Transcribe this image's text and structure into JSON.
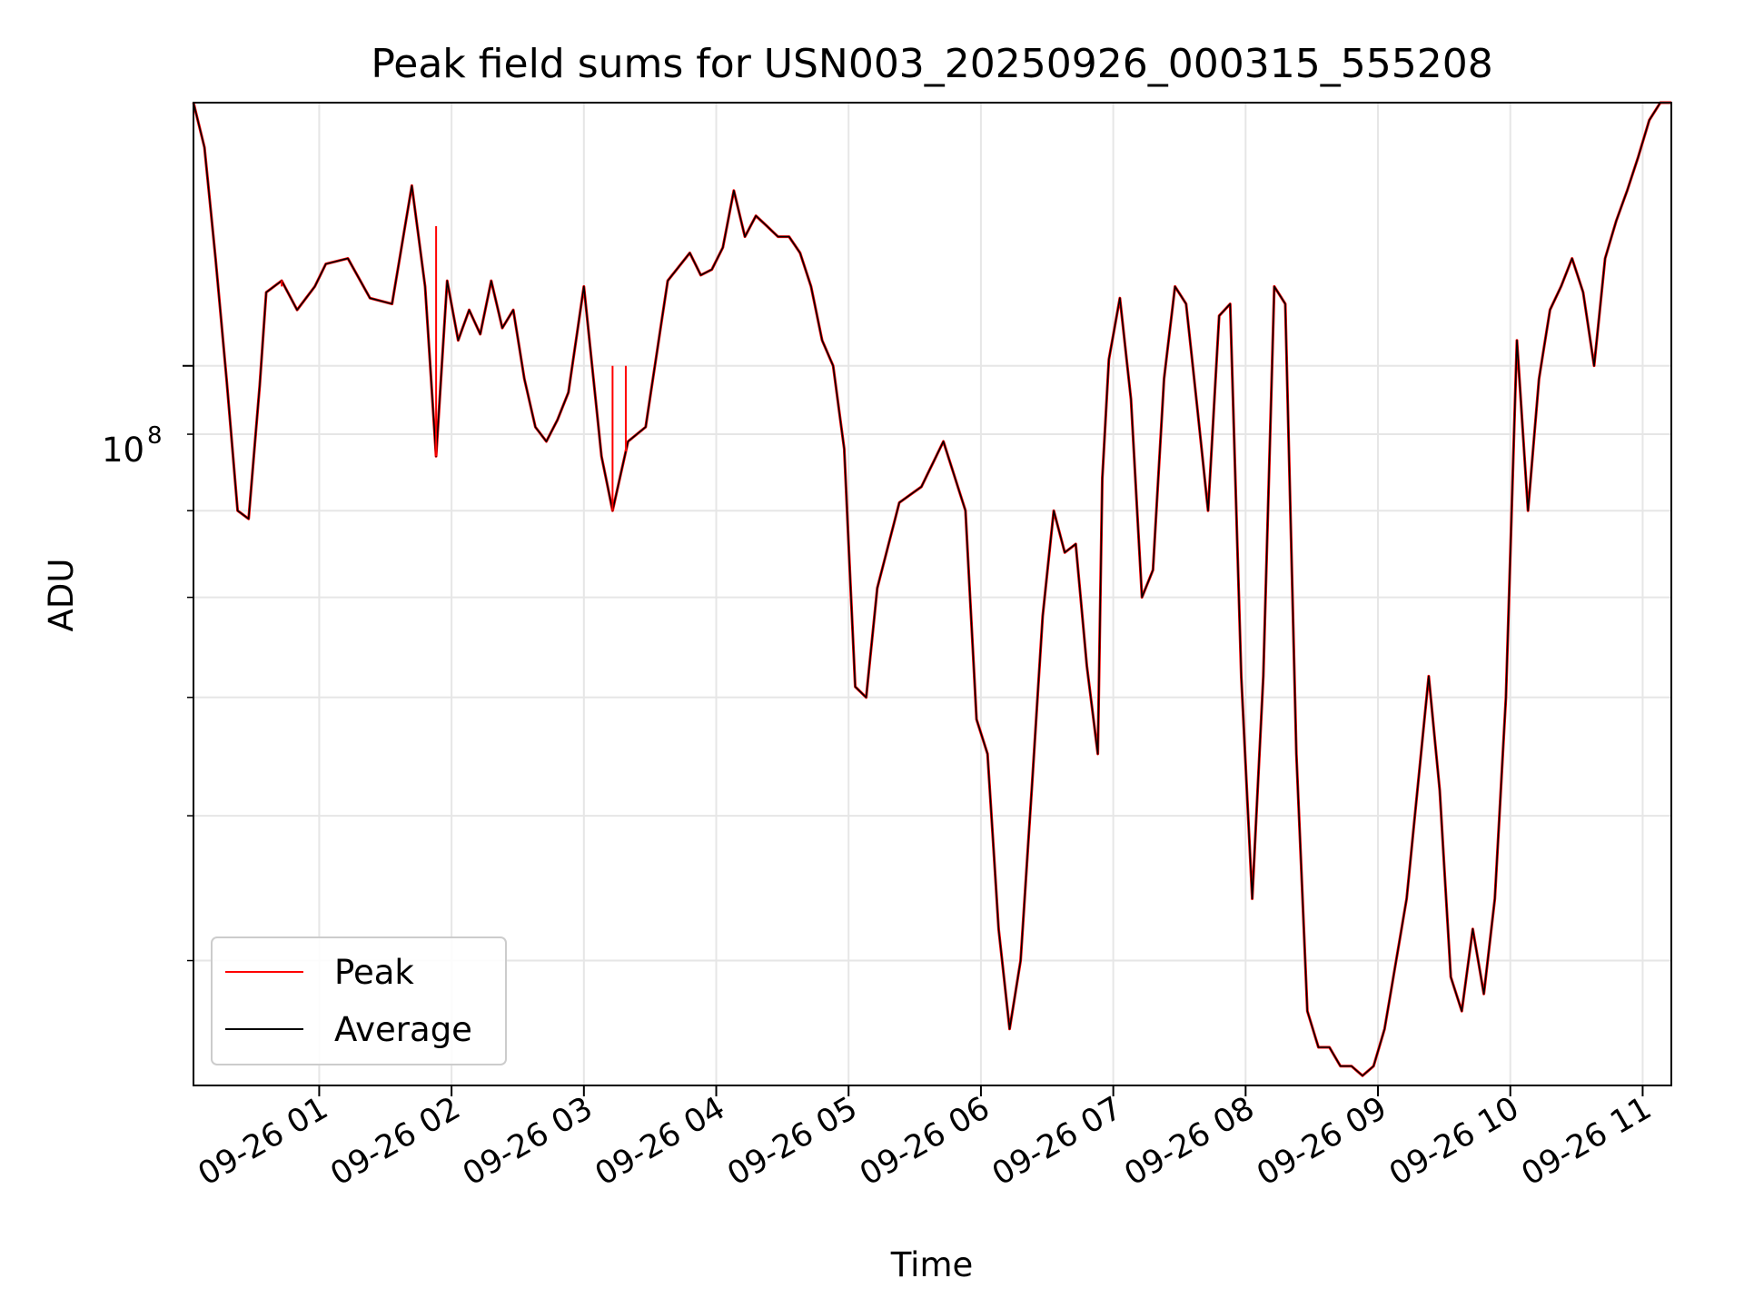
{
  "chart_data": {
    "type": "line",
    "title": "Peak field sums for USN003_20250926_000315_555208",
    "xlabel": "Time",
    "ylabel": "ADU",
    "y_scale": "log",
    "y_tick_label": {
      "base": "10",
      "exponent": "8"
    },
    "xlim": [
      "2025-09-26 00:03",
      "2025-09-26 11:13"
    ],
    "ylim": [
      33000000,
      150000000
    ],
    "x_tick_labels": [
      "09-26 01",
      "09-26 02",
      "09-26 03",
      "09-26 04",
      "09-26 05",
      "09-26 06",
      "09-26 07",
      "09-26 08",
      "09-26 09",
      "09-26 10",
      "09-26 11"
    ],
    "x_ticks": [
      "2025-09-26 01:00",
      "2025-09-26 02:00",
      "2025-09-26 03:00",
      "2025-09-26 04:00",
      "2025-09-26 05:00",
      "2025-09-26 06:00",
      "2025-09-26 07:00",
      "2025-09-26 08:00",
      "2025-09-26 09:00",
      "2025-09-26 10:00",
      "2025-09-26 11:00"
    ],
    "y_minor_ticks": [
      40000000,
      50000000,
      60000000,
      70000000,
      80000000,
      90000000,
      200000000
    ],
    "grid": true,
    "legend_position": "lower-left",
    "series": [
      {
        "name": "Peak",
        "color": "#ff0000"
      },
      {
        "name": "Average",
        "color": "#000000"
      }
    ],
    "x": [
      "00:03",
      "00:08",
      "00:13",
      "00:18",
      "00:23",
      "00:28",
      "00:33",
      "00:36",
      "00:43",
      "00:50",
      "00:58",
      "01:03",
      "01:13",
      "01:23",
      "01:33",
      "01:42",
      "01:48",
      "01:53",
      "01:58",
      "02:03",
      "02:08",
      "02:13",
      "02:18",
      "02:23",
      "02:28",
      "02:33",
      "02:38",
      "02:43",
      "02:48",
      "02:53",
      "03:00",
      "03:08",
      "03:13",
      "03:20",
      "03:28",
      "03:38",
      "03:48",
      "03:53",
      "03:58",
      "04:03",
      "04:08",
      "04:13",
      "04:18",
      "04:23",
      "04:28",
      "04:33",
      "04:38",
      "04:43",
      "04:48",
      "04:53",
      "04:58",
      "05:03",
      "05:08",
      "05:13",
      "05:23",
      "05:33",
      "05:43",
      "05:53",
      "05:58",
      "06:03",
      "06:08",
      "06:13",
      "06:18",
      "06:23",
      "06:28",
      "06:33",
      "06:38",
      "06:43",
      "06:48",
      "06:53",
      "06:55",
      "06:58",
      "07:03",
      "07:08",
      "07:13",
      "07:18",
      "07:23",
      "07:28",
      "07:33",
      "07:38",
      "07:43",
      "07:48",
      "07:53",
      "07:58",
      "08:03",
      "08:08",
      "08:13",
      "08:18",
      "08:23",
      "08:28",
      "08:33",
      "08:38",
      "08:43",
      "08:48",
      "08:53",
      "08:58",
      "09:03",
      "09:13",
      "09:23",
      "09:28",
      "09:33",
      "09:38",
      "09:43",
      "09:48",
      "09:53",
      "09:58",
      "10:03",
      "10:08",
      "10:13",
      "10:18",
      "10:23",
      "10:28",
      "10:33",
      "10:38",
      "10:43",
      "10:48",
      "10:53",
      "10:58",
      "11:03",
      "11:08",
      "11:13"
    ],
    "values": [
      150000000,
      140000000,
      118000000,
      98000000,
      80000000,
      79000000,
      97000000,
      112000000,
      114000000,
      109000000,
      113000000,
      117000000,
      118000000,
      111000000,
      110000000,
      132000000,
      113000000,
      87000000,
      114000000,
      104000000,
      109000000,
      105000000,
      114000000,
      106000000,
      109000000,
      98000000,
      91000000,
      89000000,
      92000000,
      96000000,
      113000000,
      87000000,
      80000000,
      89000000,
      91000000,
      114000000,
      119000000,
      115000000,
      116000000,
      120000000,
      131000000,
      122000000,
      126000000,
      124000000,
      122000000,
      122000000,
      119000000,
      113000000,
      104000000,
      100000000,
      88000000,
      61000000,
      60000000,
      71000000,
      81000000,
      83000000,
      89000000,
      80000000,
      58000000,
      55000000,
      42000000,
      36000000,
      40000000,
      52000000,
      68000000,
      80000000,
      75000000,
      76000000,
      63000000,
      55000000,
      84000000,
      101000000,
      111000000,
      95000000,
      70000000,
      73000000,
      98000000,
      113000000,
      110000000,
      94000000,
      80000000,
      108000000,
      110000000,
      62000000,
      44000000,
      62000000,
      113000000,
      110000000,
      55000000,
      37000000,
      35000000,
      35000000,
      34000000,
      34000000,
      33500000,
      34000000,
      36000000,
      44000000,
      62000000,
      52000000,
      39000000,
      37000000,
      42000000,
      38000000,
      44000000,
      60000000,
      104000000,
      80000000,
      98000000,
      109000000,
      113000000,
      118000000,
      112000000,
      100000000,
      118000000,
      125000000,
      131000000,
      138000000,
      146000000,
      150000000,
      150000000
    ],
    "peak_spikes": [
      {
        "x": "00:43",
        "y": 113000000
      },
      {
        "x": "01:53",
        "y": 124000000
      },
      {
        "x": "03:13",
        "y": 100000000
      },
      {
        "x": "03:19",
        "y": 100000000
      }
    ]
  }
}
